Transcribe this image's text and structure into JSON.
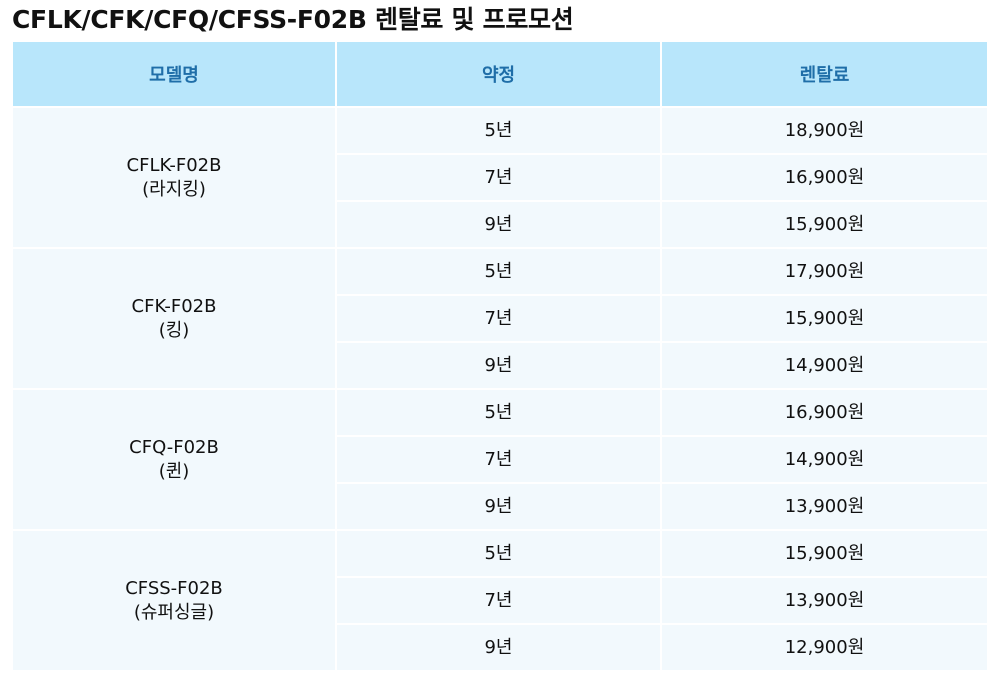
{
  "title": "CFLK/CFK/CFQ/CFSS-F02B 렌탈료 및 프로모션",
  "table": {
    "headers": {
      "model": "모델명",
      "term": "약정",
      "price": "렌탈료"
    },
    "groups": [
      {
        "model": "CFLK-F02B",
        "name": "(라지킹)",
        "rows": [
          {
            "term": "5년",
            "price": "18,900원"
          },
          {
            "term": "7년",
            "price": "16,900원"
          },
          {
            "term": "9년",
            "price": "15,900원"
          }
        ]
      },
      {
        "model": "CFK-F02B",
        "name": "(킹)",
        "rows": [
          {
            "term": "5년",
            "price": "17,900원"
          },
          {
            "term": "7년",
            "price": "15,900원"
          },
          {
            "term": "9년",
            "price": "14,900원"
          }
        ]
      },
      {
        "model": "CFQ-F02B",
        "name": "(퀸)",
        "rows": [
          {
            "term": "5년",
            "price": "16,900원"
          },
          {
            "term": "7년",
            "price": "14,900원"
          },
          {
            "term": "9년",
            "price": "13,900원"
          }
        ]
      },
      {
        "model": "CFSS-F02B",
        "name": "(슈퍼싱글)",
        "rows": [
          {
            "term": "5년",
            "price": "15,900원"
          },
          {
            "term": "7년",
            "price": "13,900원"
          },
          {
            "term": "9년",
            "price": "12,900원"
          }
        ]
      }
    ]
  }
}
